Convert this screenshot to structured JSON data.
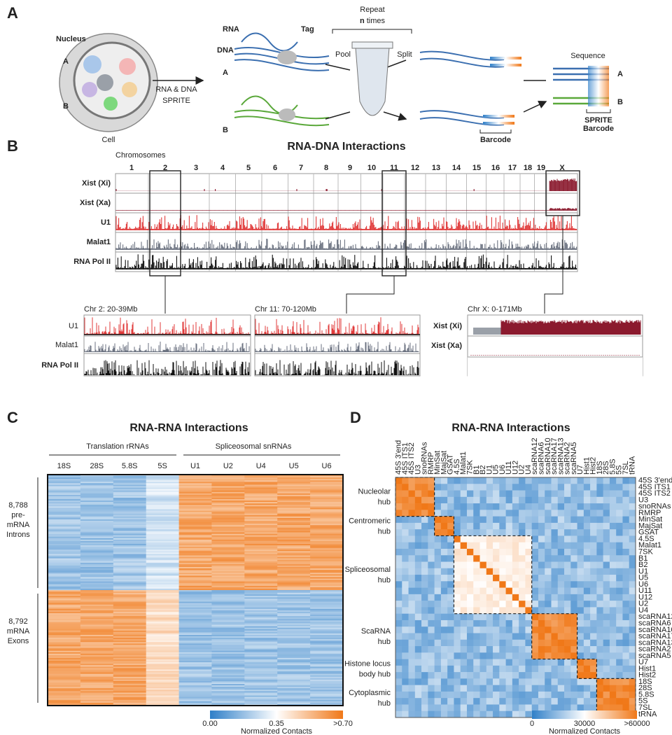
{
  "panel_a": {
    "label": "A",
    "nucleus": "Nucleus",
    "group_a": "A",
    "group_b": "B",
    "cell": "Cell",
    "method": [
      "RNA & DNA",
      "SPRITE"
    ],
    "rna": "RNA",
    "dna": "DNA",
    "tag": "Tag",
    "repeat": "Repeat",
    "n": "n",
    "times": " times",
    "pool": "Pool",
    "split": "Split",
    "barcode": "Barcode",
    "sequence": "Sequence",
    "sprite_barcode": [
      "SPRITE",
      "Barcode"
    ]
  },
  "panel_b": {
    "label": "B",
    "title": "RNA-DNA Interactions",
    "axis_label": "Chromosomes",
    "chromosomes": [
      "1",
      "2",
      "3",
      "4",
      "5",
      "6",
      "7",
      "8",
      "9",
      "10",
      "11",
      "12",
      "13",
      "14",
      "15",
      "16",
      "17",
      "18",
      "19",
      "X"
    ],
    "tracks": [
      "Xist (Xi)",
      "Xist (Xa)",
      "U1",
      "Malat1",
      "RNA Pol II"
    ],
    "zooms": [
      {
        "title": "Chr 2: 20-39Mb",
        "tracks": [
          "U1",
          "Malat1",
          "RNA Pol II"
        ]
      },
      {
        "title": "Chr 11: 70-120Mb"
      },
      {
        "title": "Chr X: 0-171Mb",
        "tracks": [
          "Xist (Xi)",
          "Xist (Xa)"
        ]
      }
    ]
  },
  "panel_c": {
    "label": "C",
    "title": "RNA-RNA Interactions",
    "groups": [
      "Translation rRNAs",
      "Spliceosomal snRNAs"
    ],
    "columns": [
      "18S",
      "28S",
      "5.8S",
      "5S",
      "U1",
      "U2",
      "U4",
      "U5",
      "U6"
    ],
    "rows": [
      [
        "8,788",
        "pre-",
        "mRNA",
        "Introns"
      ],
      [
        "8,792",
        "mRNA",
        "Exons"
      ]
    ],
    "colorbar": {
      "ticks": [
        "0.00",
        "0.35",
        ">0.70"
      ],
      "label": "Normalized Contacts"
    }
  },
  "panel_d": {
    "label": "D",
    "title": "RNA-RNA Interactions",
    "rnas": [
      "45S 3'end",
      "45S ITS1",
      "45S ITS2",
      "U3",
      "snoRNAs",
      "RMRP",
      "MinSat",
      "MajSat",
      "GSAT",
      "4.5S",
      "Malat1",
      "7SK",
      "B1",
      "B2",
      "U1",
      "U5",
      "U6",
      "U11",
      "U12",
      "U2",
      "U4",
      "scaRNA12",
      "scaRNA6",
      "scaRNA10",
      "scaRNA17",
      "scaRNA13",
      "scaRNA2",
      "scaRNA5",
      "U7",
      "Hist1",
      "Hist2",
      "18S",
      "28S",
      "5.8S",
      "5S",
      "7SL",
      "tRNA"
    ],
    "hubs": [
      [
        "Nucleolar",
        "hub"
      ],
      [
        "Centromeric",
        "hub"
      ],
      [
        "Spliceosomal",
        "hub"
      ],
      [
        "ScaRNA",
        "hub"
      ],
      [
        "Histone locus",
        "body hub"
      ],
      [
        "Cytoplasmic",
        "hub"
      ]
    ],
    "colorbar": {
      "ticks": [
        "0",
        "30000",
        ">60000"
      ],
      "label": "Normalized Contacts"
    }
  }
}
